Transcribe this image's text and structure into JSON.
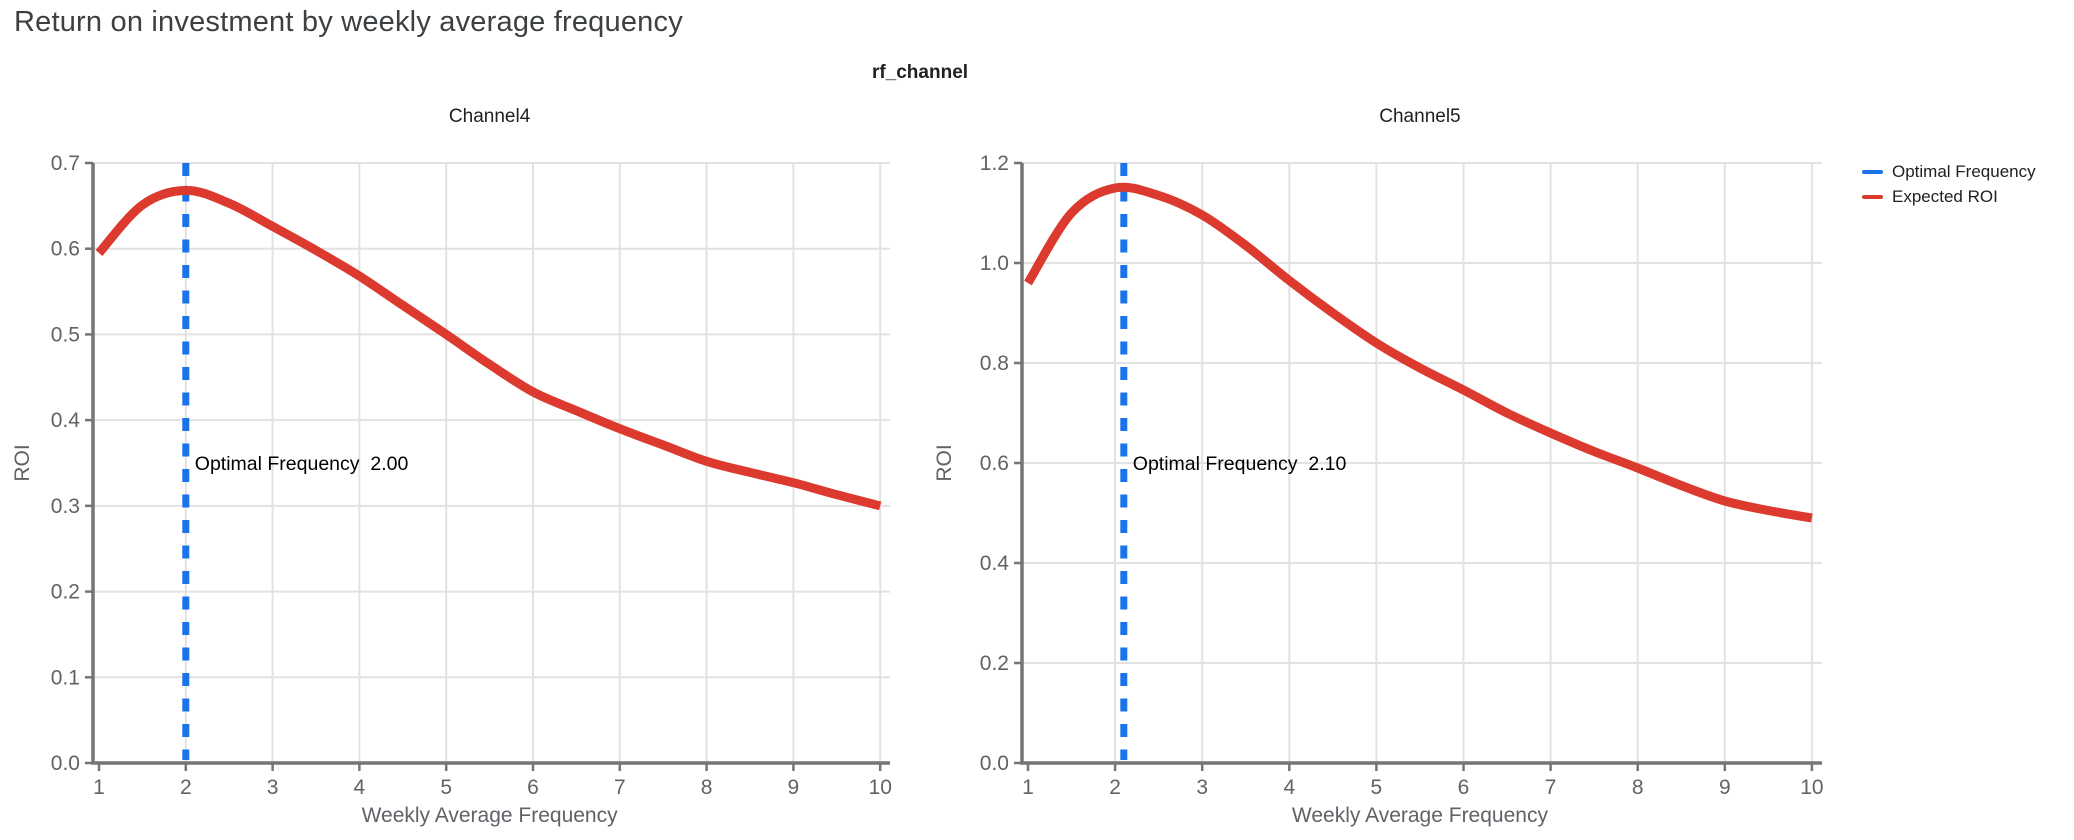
{
  "page_title": "Return on investment by weekly average frequency",
  "facet_label": "rf_channel",
  "legend": [
    {
      "name": "optimal-frequency",
      "label": "Optimal Frequency",
      "color": "#1A73E8"
    },
    {
      "name": "expected-roi",
      "label": "Expected ROI",
      "color": "#DC3A2E"
    }
  ],
  "colors": {
    "optimal_line": "#1A73E8",
    "roi_curve": "#DC3A2E",
    "grid": "#E2E2E2",
    "axis": "#757575",
    "tick_label": "#5F6368",
    "axis_title": "#5F6368",
    "subplot_title": "#202124",
    "annotation": "#000000",
    "page_title": "#3C4043"
  },
  "chart_data": [
    {
      "type": "line",
      "title": "Channel4",
      "xlabel": "Weekly Average Frequency",
      "ylabel": "ROI",
      "xlim": [
        1,
        10
      ],
      "ylim": [
        0,
        0.7
      ],
      "xticks": [
        1,
        2,
        3,
        4,
        5,
        6,
        7,
        8,
        9,
        10
      ],
      "yticks": [
        0,
        0.1,
        0.2,
        0.3,
        0.4,
        0.5,
        0.6,
        0.7
      ],
      "grid": true,
      "optimal_frequency": 2.0,
      "annotation": "Optimal Frequency  2.00",
      "series": [
        {
          "name": "Expected ROI",
          "x": [
            1,
            1.5,
            2,
            2.5,
            3,
            3.5,
            4,
            4.5,
            5,
            5.5,
            6,
            6.5,
            7,
            7.5,
            8,
            8.5,
            9,
            9.5,
            10
          ],
          "y": [
            0.595,
            0.651,
            0.668,
            0.653,
            0.626,
            0.598,
            0.568,
            0.534,
            0.5,
            0.465,
            0.433,
            0.411,
            0.39,
            0.371,
            0.352,
            0.339,
            0.327,
            0.313,
            0.3
          ]
        }
      ]
    },
    {
      "type": "line",
      "title": "Channel5",
      "xlabel": "Weekly Average Frequency",
      "ylabel": "ROI",
      "xlim": [
        1,
        10
      ],
      "ylim": [
        0,
        1.2
      ],
      "xticks": [
        1,
        2,
        3,
        4,
        5,
        6,
        7,
        8,
        9,
        10
      ],
      "yticks": [
        0,
        0.2,
        0.4,
        0.6,
        0.8,
        1.0,
        1.2
      ],
      "grid": true,
      "optimal_frequency": 2.1,
      "annotation": "Optimal Frequency  2.10",
      "series": [
        {
          "name": "Expected ROI",
          "x": [
            1,
            1.5,
            2,
            2.5,
            3,
            3.5,
            4,
            4.5,
            5,
            5.5,
            6,
            6.5,
            7,
            7.5,
            8,
            8.5,
            9,
            9.5,
            10
          ],
          "y": [
            0.96,
            1.1,
            1.15,
            1.135,
            1.096,
            1.035,
            0.965,
            0.9,
            0.84,
            0.79,
            0.746,
            0.7,
            0.66,
            0.623,
            0.59,
            0.555,
            0.524,
            0.505,
            0.49
          ]
        }
      ]
    }
  ]
}
